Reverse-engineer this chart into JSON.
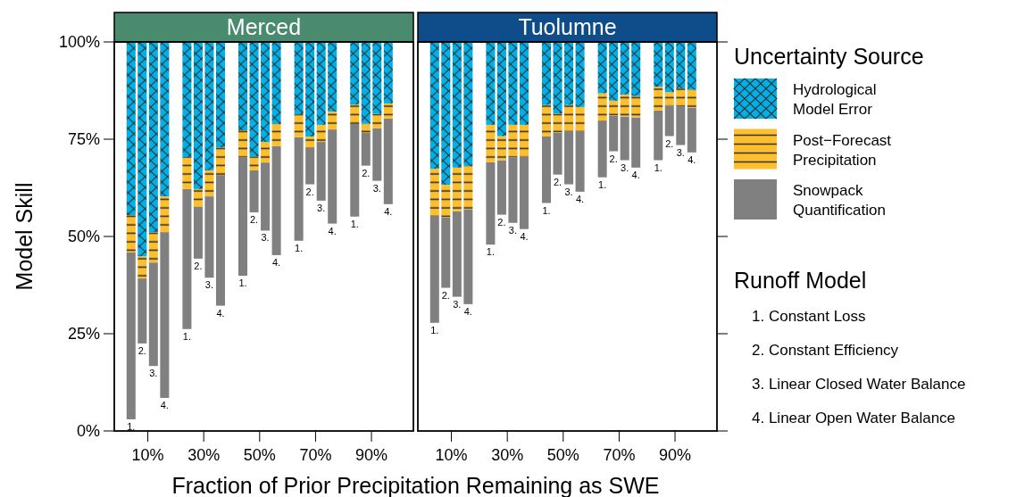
{
  "chart_data": [
    {
      "type": "bar",
      "title": "Merced",
      "xlabel": "Fraction of Prior Precipitation Remaining as SWE",
      "ylabel": "Model Skill",
      "x": [
        4,
        8,
        12,
        16,
        24,
        28,
        32,
        36,
        44,
        48,
        52,
        56,
        64,
        68,
        72,
        76,
        84,
        88,
        92,
        96
      ],
      "xlim": [
        -2,
        105
      ],
      "xticks": [
        {
          "value": 10,
          "label": "10%"
        },
        {
          "value": 30,
          "label": "30%"
        },
        {
          "value": 50,
          "label": "50%"
        },
        {
          "value": 70,
          "label": "70%"
        },
        {
          "value": 90,
          "label": "90%"
        }
      ],
      "ylim": [
        0,
        100
      ],
      "yticks": [
        {
          "value": 0,
          "label": "0%"
        },
        {
          "value": 25,
          "label": "25%"
        },
        {
          "value": 50,
          "label": "50%"
        },
        {
          "value": 75,
          "label": "75%"
        },
        {
          "value": 100,
          "label": "100%"
        }
      ],
      "series": [
        {
          "color": "#808080",
          "base": [
            3.0,
            22.5,
            16.7,
            8.5,
            26.2,
            44.3,
            39.4,
            32.2,
            39.9,
            56.2,
            51.5,
            45.2,
            48.9,
            63.4,
            59.2,
            53.3,
            55.1,
            68.2,
            64.3,
            58.3
          ],
          "values": [
            42.9,
            16.7,
            26.6,
            42.6,
            36.0,
            13.3,
            20.9,
            33.6,
            30.5,
            10.8,
            17.5,
            28.0,
            26.6,
            9.3,
            15.1,
            24.2,
            23.8,
            8.4,
            13.5,
            22.0
          ]
        },
        {
          "color": "#fdbf2d",
          "base": [
            45.9,
            39.2,
            43.3,
            51.1,
            62.2,
            57.6,
            60.3,
            65.8,
            70.4,
            67.0,
            69.0,
            73.2,
            75.5,
            72.7,
            74.3,
            77.5,
            78.9,
            76.6,
            77.8,
            80.3
          ],
          "values": [
            9.6,
            5.7,
            7.8,
            9.2,
            8.2,
            4.6,
            6.7,
            7.1,
            6.9,
            3.6,
            5.3,
            5.7,
            5.9,
            3.0,
            4.4,
            4.6,
            5.0,
            2.4,
            3.7,
            3.9
          ]
        },
        {
          "color": "#00b0e8",
          "base": [
            55.5,
            44.9,
            51.1,
            60.3,
            70.4,
            62.2,
            67.0,
            72.9,
            77.3,
            70.6,
            74.3,
            78.9,
            81.4,
            75.7,
            78.7,
            82.1,
            83.9,
            79.0,
            81.5,
            84.2
          ],
          "values": [
            44.5,
            55.1,
            48.9,
            39.7,
            29.6,
            37.8,
            33.0,
            27.1,
            22.7,
            29.4,
            25.7,
            21.1,
            18.6,
            24.3,
            21.3,
            17.9,
            16.1,
            21.0,
            18.5,
            15.8
          ]
        }
      ],
      "annotations": [
        "1.",
        "2.",
        "3.",
        "4.",
        "1.",
        "2.",
        "3.",
        "4.",
        "1.",
        "2.",
        "3.",
        "4.",
        "1.",
        "2.",
        "3.",
        "4.",
        "1.",
        "2.",
        "3.",
        "4."
      ]
    },
    {
      "type": "bar",
      "title": "Tuolumne",
      "tick_labels": "x",
      "legend": "right",
      "legend_title": "Uncertainty Source",
      "x": [
        4,
        8,
        12,
        16,
        24,
        28,
        32,
        36,
        44,
        48,
        52,
        56,
        64,
        68,
        72,
        76,
        84,
        88,
        92,
        96
      ],
      "xlim": [
        -2,
        105
      ],
      "xticks": [
        {
          "value": 10,
          "label": "10%"
        },
        {
          "value": 30,
          "label": "30%"
        },
        {
          "value": 50,
          "label": "50%"
        },
        {
          "value": 70,
          "label": "70%"
        },
        {
          "value": 90,
          "label": "90%"
        }
      ],
      "ylim": [
        0,
        100
      ],
      "yticks": [
        {
          "value": 0,
          "label": null
        },
        {
          "value": 25,
          "label": null
        },
        {
          "value": 50,
          "label": null
        },
        {
          "value": 75,
          "label": null
        },
        {
          "value": 100,
          "label": null
        }
      ],
      "series": [
        {
          "name": "Snowpack Quantification",
          "color": "#808080",
          "base": [
            27.8,
            36.8,
            34.5,
            32.6,
            47.9,
            55.6,
            53.5,
            51.9,
            58.6,
            65.9,
            63.4,
            61.5,
            65.2,
            71.9,
            69.6,
            67.7,
            69.6,
            75.8,
            73.5,
            71.6
          ],
          "values": [
            27.5,
            18.1,
            22.0,
            24.4,
            21.2,
            14.0,
            16.8,
            18.6,
            17.1,
            10.8,
            13.7,
            15.6,
            14.6,
            9.1,
            11.2,
            12.9,
            12.8,
            7.8,
            10.0,
            11.5
          ]
        },
        {
          "name": "Post−Forecast Precipitation",
          "color": "#fdbf2d",
          "base": [
            55.3,
            54.9,
            56.5,
            57.0,
            69.1,
            69.6,
            70.3,
            70.5,
            75.7,
            76.7,
            77.1,
            77.1,
            79.8,
            81.0,
            80.8,
            80.6,
            82.4,
            83.6,
            83.5,
            83.1
          ],
          "values": [
            12.1,
            8.4,
            11.2,
            11.1,
            9.6,
            6.2,
            8.4,
            8.2,
            8.1,
            4.9,
            6.7,
            6.2,
            7.0,
            3.9,
            5.7,
            5.5,
            6.1,
            3.5,
            4.6,
            4.6
          ]
        },
        {
          "name": "Hydrological Model Error",
          "color": "#00b0e8",
          "base": [
            67.4,
            63.3,
            67.7,
            68.1,
            78.7,
            75.8,
            78.7,
            78.7,
            83.8,
            81.6,
            83.8,
            83.3,
            86.8,
            84.9,
            86.5,
            86.1,
            88.5,
            87.1,
            88.1,
            87.7
          ],
          "values": [
            32.6,
            36.7,
            32.3,
            31.9,
            21.3,
            24.2,
            21.3,
            21.3,
            16.2,
            18.4,
            16.2,
            16.7,
            13.2,
            15.1,
            13.5,
            13.9,
            11.5,
            12.9,
            11.9,
            12.3
          ]
        }
      ],
      "annotations": [
        "Runoff Model",
        "1. Constant Loss",
        "2. Constant Efficiency",
        "3. Linear Closed Water Balance",
        "4. Linear Open Water Balance",
        "1.",
        "2.",
        "3.",
        "4.",
        "1.",
        "2.",
        "3.",
        "4.",
        "1.",
        "2.",
        "3.",
        "4.",
        "1.",
        "2.",
        "3.",
        "4.",
        "1.",
        "2.",
        "3.",
        "4."
      ]
    }
  ]
}
